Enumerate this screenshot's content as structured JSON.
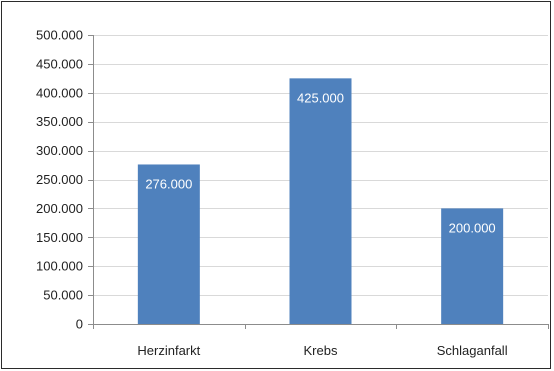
{
  "chart_data": {
    "type": "bar",
    "categories": [
      "Herzinfarkt",
      "Krebs",
      "Schlaganfall"
    ],
    "values": [
      276000,
      425000,
      200000
    ],
    "data_labels": [
      "276.000",
      "425.000",
      "200.000"
    ],
    "ylim": [
      0,
      500000
    ],
    "yticks": [
      0,
      50000,
      100000,
      150000,
      200000,
      250000,
      300000,
      350000,
      400000,
      450000,
      500000
    ],
    "ytick_labels": [
      "0",
      "50.000",
      "100.000",
      "150.000",
      "200.000",
      "250.000",
      "300.000",
      "350.000",
      "400.000",
      "450.000",
      "500.000"
    ],
    "title": "",
    "xlabel": "",
    "ylabel": "",
    "grid": true,
    "legend": "none",
    "bar_color": "#4f81bd",
    "grid_color": "#d9d9d9"
  }
}
